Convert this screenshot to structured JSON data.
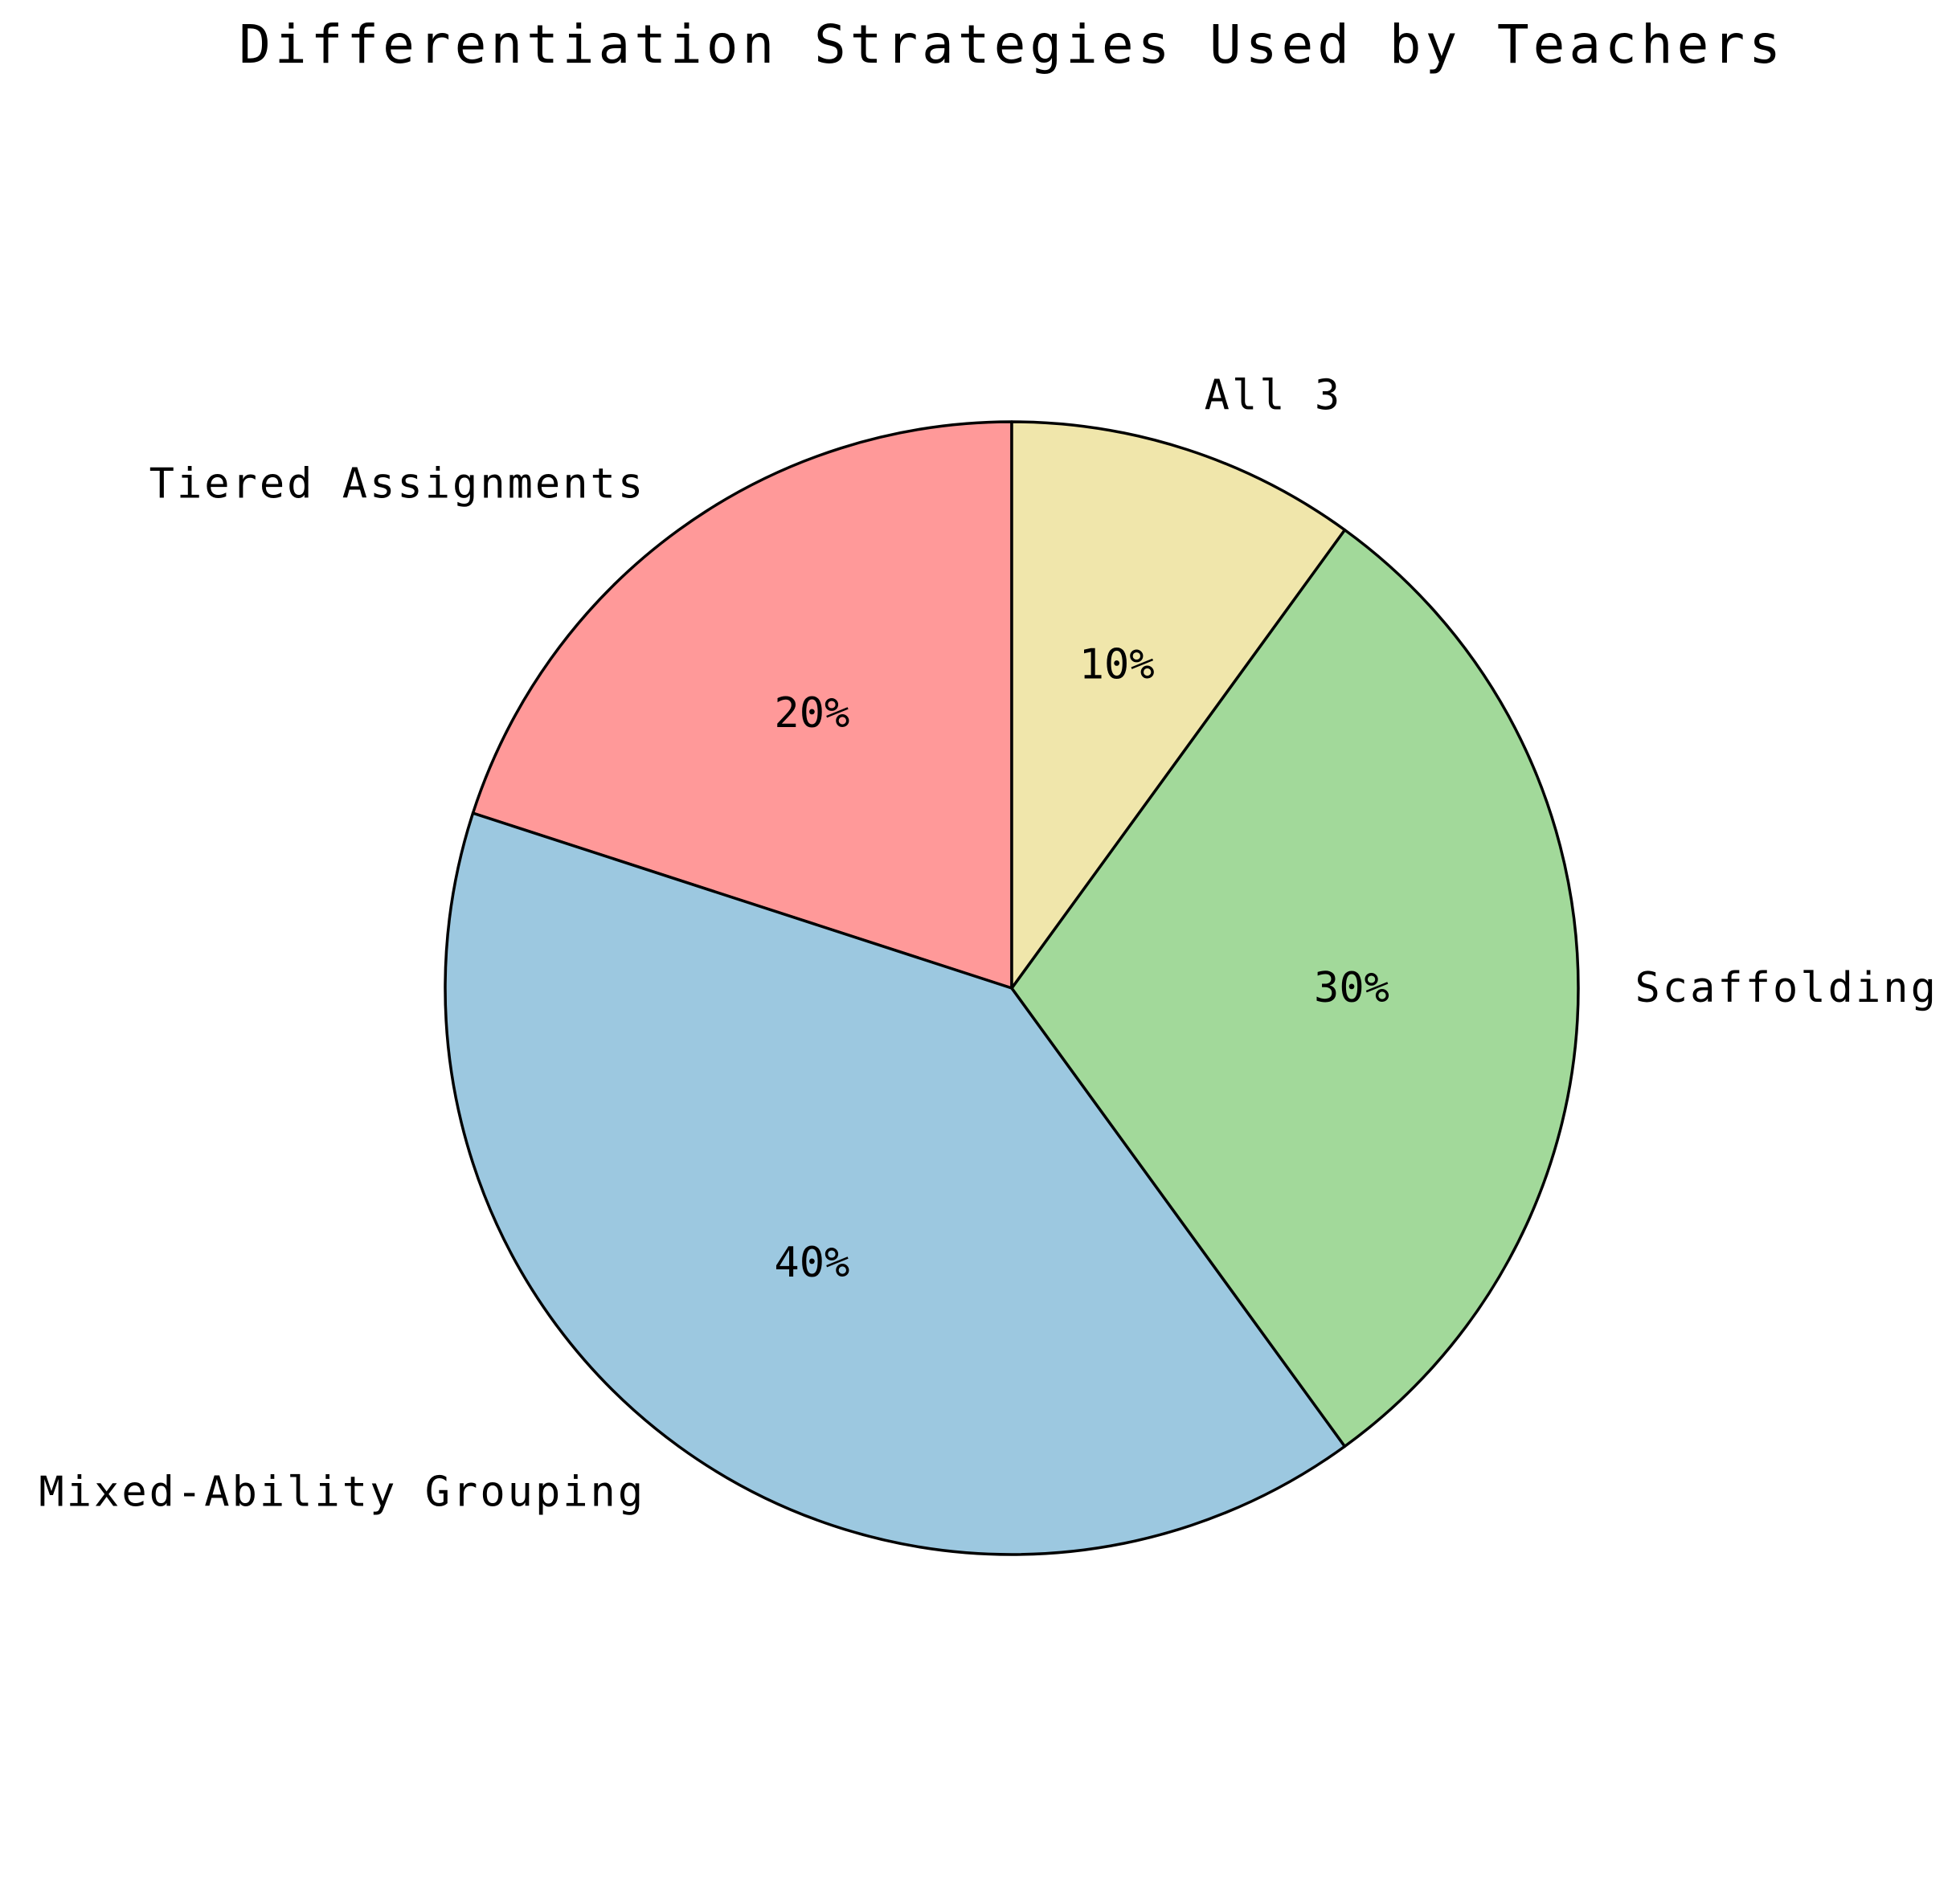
{
  "chart_data": {
    "type": "pie",
    "title": "Differentiation Strategies Used by Teachers",
    "start_angle_deg": 90,
    "direction": "counterclockwise",
    "slices": [
      {
        "label": "Tiered Assignments",
        "value": 20,
        "pct_label": "20%",
        "color": "#FF9999"
      },
      {
        "label": "Mixed-Ability Grouping",
        "value": 40,
        "pct_label": "40%",
        "color": "#9CC8E0"
      },
      {
        "label": "Scaffolding",
        "value": 30,
        "pct_label": "30%",
        "color": "#A2D99A"
      },
      {
        "label": "All 3",
        "value": 10,
        "pct_label": "10%",
        "color": "#F0E6AB"
      }
    ]
  }
}
